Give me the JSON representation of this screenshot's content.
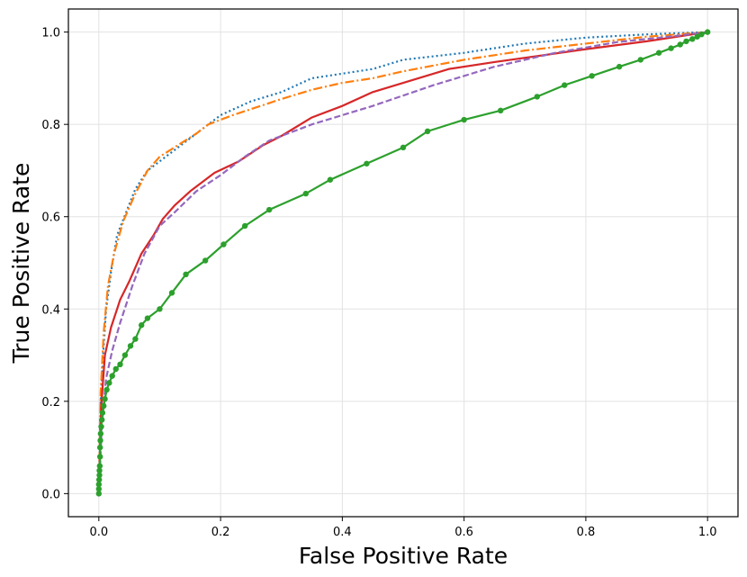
{
  "chart_data": {
    "type": "line",
    "title": "",
    "xlabel": "False Positive Rate",
    "ylabel": "True Positive Rate",
    "xlim": [
      -0.05,
      1.05
    ],
    "ylim": [
      -0.05,
      1.05
    ],
    "xticks": [
      0.0,
      0.2,
      0.4,
      0.6,
      0.8,
      1.0
    ],
    "yticks": [
      0.0,
      0.2,
      0.4,
      0.6,
      0.8,
      1.0
    ],
    "xtick_labels": [
      "0.0",
      "0.2",
      "0.4",
      "0.6",
      "0.8",
      "1.0"
    ],
    "ytick_labels": [
      "0.0",
      "0.2",
      "0.4",
      "0.6",
      "0.8",
      "1.0"
    ],
    "grid": true,
    "legend": "none",
    "series": [
      {
        "color": "#1f77b4",
        "linestyle": "dotted",
        "marker": "none",
        "x": [
          0.0,
          0.003,
          0.007,
          0.012,
          0.02,
          0.03,
          0.045,
          0.06,
          0.08,
          0.1,
          0.13,
          0.16,
          0.2,
          0.25,
          0.3,
          0.35,
          0.4,
          0.45,
          0.5,
          0.6,
          0.7,
          0.8,
          0.9,
          1.0
        ],
        "y": [
          0.0,
          0.2,
          0.3,
          0.4,
          0.48,
          0.56,
          0.61,
          0.66,
          0.7,
          0.72,
          0.75,
          0.78,
          0.82,
          0.85,
          0.87,
          0.9,
          0.91,
          0.92,
          0.94,
          0.955,
          0.975,
          0.988,
          0.995,
          1.0
        ]
      },
      {
        "color": "#ff7f0e",
        "linestyle": "dashdot",
        "marker": "none",
        "x": [
          0.0,
          0.003,
          0.008,
          0.015,
          0.025,
          0.04,
          0.06,
          0.08,
          0.1,
          0.13,
          0.16,
          0.18,
          0.22,
          0.3,
          0.35,
          0.4,
          0.45,
          0.5,
          0.6,
          0.7,
          0.8,
          0.9,
          1.0
        ],
        "y": [
          0.0,
          0.22,
          0.35,
          0.45,
          0.52,
          0.59,
          0.65,
          0.7,
          0.73,
          0.755,
          0.78,
          0.8,
          0.82,
          0.855,
          0.875,
          0.89,
          0.9,
          0.915,
          0.94,
          0.96,
          0.975,
          0.99,
          1.0
        ]
      },
      {
        "color": "#d62728",
        "linestyle": "solid",
        "marker": "none",
        "x": [
          0.0,
          0.004,
          0.01,
          0.02,
          0.035,
          0.05,
          0.07,
          0.09,
          0.105,
          0.125,
          0.15,
          0.19,
          0.23,
          0.27,
          0.3,
          0.35,
          0.4,
          0.45,
          0.5,
          0.575,
          0.65,
          0.72,
          0.8,
          0.9,
          1.0
        ],
        "y": [
          0.0,
          0.19,
          0.3,
          0.36,
          0.42,
          0.46,
          0.52,
          0.56,
          0.595,
          0.625,
          0.655,
          0.695,
          0.72,
          0.755,
          0.775,
          0.815,
          0.84,
          0.87,
          0.89,
          0.92,
          0.935,
          0.948,
          0.963,
          0.98,
          1.0
        ]
      },
      {
        "color": "#9467bd",
        "linestyle": "dashed",
        "marker": "none",
        "x": [
          0.0,
          0.005,
          0.012,
          0.022,
          0.035,
          0.055,
          0.075,
          0.1,
          0.125,
          0.16,
          0.2,
          0.24,
          0.28,
          0.35,
          0.45,
          0.55,
          0.65,
          0.75,
          0.85,
          0.95,
          1.0
        ],
        "y": [
          0.0,
          0.15,
          0.25,
          0.31,
          0.37,
          0.45,
          0.52,
          0.58,
          0.61,
          0.655,
          0.69,
          0.73,
          0.765,
          0.8,
          0.84,
          0.885,
          0.925,
          0.955,
          0.978,
          0.992,
          1.0
        ]
      },
      {
        "color": "#2ca02c",
        "linestyle": "solid",
        "marker": "circle",
        "x": [
          0.0,
          0.0,
          0.0,
          0.0005,
          0.001,
          0.001,
          0.0015,
          0.002,
          0.002,
          0.0025,
          0.003,
          0.004,
          0.005,
          0.006,
          0.008,
          0.01,
          0.013,
          0.017,
          0.022,
          0.028,
          0.035,
          0.043,
          0.052,
          0.06,
          0.07,
          0.08,
          0.1,
          0.12,
          0.143,
          0.175,
          0.205,
          0.24,
          0.28,
          0.34,
          0.38,
          0.44,
          0.5,
          0.54,
          0.6,
          0.66,
          0.72,
          0.765,
          0.81,
          0.855,
          0.89,
          0.92,
          0.94,
          0.955,
          0.965,
          0.975,
          0.983,
          0.99,
          1.0
        ],
        "y": [
          0.0,
          0.01,
          0.02,
          0.03,
          0.04,
          0.05,
          0.06,
          0.08,
          0.1,
          0.115,
          0.13,
          0.145,
          0.16,
          0.175,
          0.19,
          0.205,
          0.225,
          0.24,
          0.255,
          0.27,
          0.28,
          0.3,
          0.32,
          0.335,
          0.365,
          0.38,
          0.4,
          0.435,
          0.475,
          0.505,
          0.54,
          0.58,
          0.615,
          0.65,
          0.68,
          0.715,
          0.75,
          0.785,
          0.81,
          0.83,
          0.86,
          0.885,
          0.905,
          0.925,
          0.94,
          0.955,
          0.965,
          0.973,
          0.98,
          0.985,
          0.99,
          0.995,
          1.0
        ]
      }
    ]
  }
}
